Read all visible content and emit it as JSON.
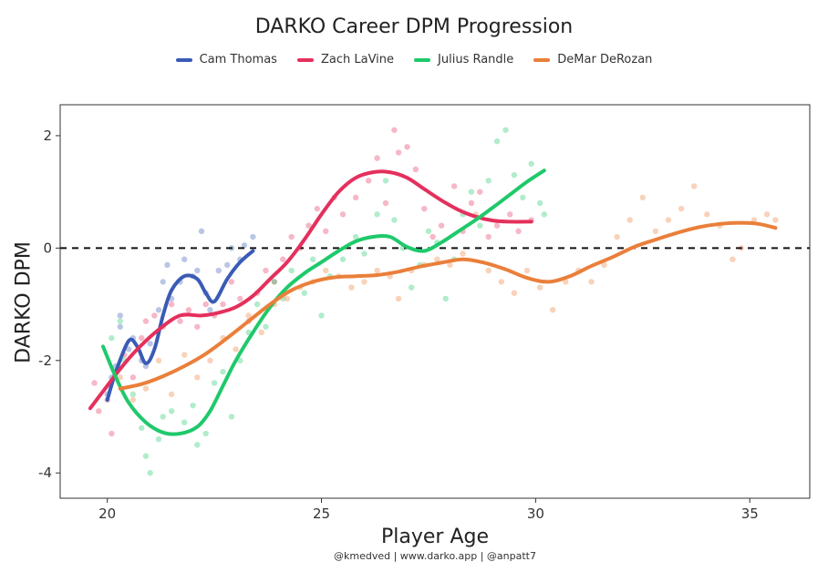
{
  "chart_data": {
    "type": "scatter",
    "title": "DARKO Career DPM Progression",
    "xlabel": "Player Age",
    "ylabel": "DARKO DPM",
    "caption": "@kmedved | www.darko.app | @anpatt7",
    "xlim": [
      18.9,
      36.4
    ],
    "ylim": [
      -4.45,
      2.55
    ],
    "xticks": [
      20,
      25,
      30,
      35
    ],
    "yticks": [
      2,
      0,
      -2,
      -4
    ],
    "xtick_labels": [
      "20",
      "25",
      "30",
      "35"
    ],
    "ytick_labels": [
      "2",
      "0",
      "-2",
      "-4"
    ],
    "reference_line": {
      "y": 0,
      "style": "dashed"
    },
    "grid": false,
    "legend_position": "top",
    "series": [
      {
        "name": "Cam Thomas",
        "color": "#3a5bb5",
        "smooth": [
          [
            20.0,
            -2.7
          ],
          [
            20.2,
            -2.2
          ],
          [
            20.5,
            -1.65
          ],
          [
            20.7,
            -1.75
          ],
          [
            20.9,
            -2.05
          ],
          [
            21.1,
            -1.8
          ],
          [
            21.3,
            -1.2
          ],
          [
            21.5,
            -0.75
          ],
          [
            21.8,
            -0.5
          ],
          [
            22.1,
            -0.55
          ],
          [
            22.3,
            -0.8
          ],
          [
            22.5,
            -0.95
          ],
          [
            22.8,
            -0.55
          ],
          [
            23.1,
            -0.25
          ],
          [
            23.4,
            -0.05
          ]
        ],
        "points": [
          [
            20.0,
            -2.6
          ],
          [
            20.1,
            -2.3
          ],
          [
            20.2,
            -2.1
          ],
          [
            20.3,
            -1.4
          ],
          [
            20.3,
            -1.2
          ],
          [
            20.5,
            -1.8
          ],
          [
            20.6,
            -1.6
          ],
          [
            20.8,
            -2.0
          ],
          [
            20.9,
            -2.1
          ],
          [
            21.0,
            -1.7
          ],
          [
            21.2,
            -1.1
          ],
          [
            21.3,
            -0.6
          ],
          [
            21.4,
            -0.3
          ],
          [
            21.5,
            -0.9
          ],
          [
            21.7,
            -0.6
          ],
          [
            21.8,
            -0.2
          ],
          [
            22.0,
            -0.5
          ],
          [
            22.1,
            -0.4
          ],
          [
            22.2,
            0.3
          ],
          [
            22.3,
            -0.8
          ],
          [
            22.4,
            -1.1
          ],
          [
            22.6,
            -0.4
          ],
          [
            22.8,
            -0.3
          ],
          [
            22.9,
            0.0
          ],
          [
            23.1,
            -0.2
          ],
          [
            23.2,
            0.05
          ],
          [
            23.4,
            0.2
          ]
        ]
      },
      {
        "name": "Zach LaVine",
        "color": "#e4305c",
        "smooth": [
          [
            19.6,
            -2.85
          ],
          [
            19.9,
            -2.55
          ],
          [
            20.3,
            -2.15
          ],
          [
            20.7,
            -1.8
          ],
          [
            21.2,
            -1.45
          ],
          [
            21.7,
            -1.2
          ],
          [
            22.2,
            -1.2
          ],
          [
            22.6,
            -1.15
          ],
          [
            23.0,
            -1.05
          ],
          [
            23.4,
            -0.85
          ],
          [
            23.8,
            -0.55
          ],
          [
            24.2,
            -0.25
          ],
          [
            24.6,
            0.15
          ],
          [
            25.0,
            0.6
          ],
          [
            25.4,
            1.0
          ],
          [
            25.8,
            1.25
          ],
          [
            26.2,
            1.35
          ],
          [
            26.6,
            1.35
          ],
          [
            27.0,
            1.25
          ],
          [
            27.4,
            1.05
          ],
          [
            27.8,
            0.85
          ],
          [
            28.2,
            0.68
          ],
          [
            28.6,
            0.56
          ],
          [
            29.0,
            0.49
          ],
          [
            29.4,
            0.47
          ],
          [
            29.9,
            0.47
          ]
        ],
        "points": [
          [
            19.7,
            -2.4
          ],
          [
            19.8,
            -2.9
          ],
          [
            20.0,
            -2.7
          ],
          [
            20.1,
            -3.3
          ],
          [
            20.2,
            -2.2
          ],
          [
            20.4,
            -1.9
          ],
          [
            20.6,
            -2.3
          ],
          [
            20.8,
            -1.6
          ],
          [
            20.9,
            -1.3
          ],
          [
            21.1,
            -1.2
          ],
          [
            21.3,
            -1.4
          ],
          [
            21.5,
            -1.0
          ],
          [
            21.7,
            -1.3
          ],
          [
            21.9,
            -1.1
          ],
          [
            22.1,
            -1.4
          ],
          [
            22.3,
            -1.0
          ],
          [
            22.5,
            -1.2
          ],
          [
            22.7,
            -1.0
          ],
          [
            22.9,
            -0.6
          ],
          [
            23.1,
            -0.9
          ],
          [
            23.3,
            -1.3
          ],
          [
            23.5,
            -0.8
          ],
          [
            23.7,
            -0.4
          ],
          [
            23.9,
            -0.6
          ],
          [
            24.1,
            -0.2
          ],
          [
            24.3,
            0.2
          ],
          [
            24.5,
            0.0
          ],
          [
            24.7,
            0.4
          ],
          [
            24.9,
            0.7
          ],
          [
            25.1,
            0.3
          ],
          [
            25.3,
            0.9
          ],
          [
            25.5,
            0.6
          ],
          [
            25.8,
            0.9
          ],
          [
            26.1,
            1.2
          ],
          [
            26.3,
            1.6
          ],
          [
            26.5,
            0.8
          ],
          [
            26.7,
            2.1
          ],
          [
            26.8,
            1.7
          ],
          [
            27.0,
            1.8
          ],
          [
            27.2,
            1.4
          ],
          [
            27.4,
            0.7
          ],
          [
            27.6,
            0.2
          ],
          [
            27.8,
            0.4
          ],
          [
            28.1,
            1.1
          ],
          [
            28.3,
            0.3
          ],
          [
            28.5,
            0.8
          ],
          [
            28.7,
            1.0
          ],
          [
            28.9,
            0.2
          ],
          [
            29.1,
            0.4
          ],
          [
            29.4,
            0.6
          ],
          [
            29.6,
            0.3
          ],
          [
            29.9,
            0.5
          ]
        ]
      },
      {
        "name": "Julius Randle",
        "color": "#1fc96b",
        "smooth": [
          [
            19.9,
            -1.75
          ],
          [
            20.2,
            -2.3
          ],
          [
            20.5,
            -2.75
          ],
          [
            20.9,
            -3.1
          ],
          [
            21.3,
            -3.28
          ],
          [
            21.7,
            -3.3
          ],
          [
            22.1,
            -3.18
          ],
          [
            22.4,
            -2.9
          ],
          [
            22.7,
            -2.45
          ],
          [
            23.0,
            -2.0
          ],
          [
            23.4,
            -1.5
          ],
          [
            23.8,
            -1.05
          ],
          [
            24.2,
            -0.7
          ],
          [
            24.6,
            -0.45
          ],
          [
            25.0,
            -0.25
          ],
          [
            25.4,
            -0.05
          ],
          [
            25.8,
            0.12
          ],
          [
            26.2,
            0.2
          ],
          [
            26.6,
            0.2
          ],
          [
            27.0,
            0.02
          ],
          [
            27.4,
            -0.05
          ],
          [
            27.8,
            0.1
          ],
          [
            28.2,
            0.3
          ],
          [
            28.6,
            0.5
          ],
          [
            29.0,
            0.72
          ],
          [
            29.4,
            0.95
          ],
          [
            29.8,
            1.18
          ],
          [
            30.2,
            1.38
          ]
        ],
        "points": [
          [
            20.1,
            -1.6
          ],
          [
            20.3,
            -1.3
          ],
          [
            20.4,
            -2.0
          ],
          [
            20.6,
            -2.6
          ],
          [
            20.8,
            -3.2
          ],
          [
            20.9,
            -3.7
          ],
          [
            21.0,
            -4.0
          ],
          [
            21.2,
            -3.4
          ],
          [
            21.3,
            -3.0
          ],
          [
            21.5,
            -2.9
          ],
          [
            21.8,
            -3.1
          ],
          [
            22.0,
            -2.8
          ],
          [
            22.1,
            -3.5
          ],
          [
            22.3,
            -3.3
          ],
          [
            22.5,
            -2.4
          ],
          [
            22.7,
            -2.2
          ],
          [
            22.9,
            -3.0
          ],
          [
            23.1,
            -2.0
          ],
          [
            23.3,
            -1.5
          ],
          [
            23.5,
            -1.0
          ],
          [
            23.7,
            -1.4
          ],
          [
            23.9,
            -0.6
          ],
          [
            24.1,
            -0.9
          ],
          [
            24.3,
            -0.4
          ],
          [
            24.6,
            -0.8
          ],
          [
            24.8,
            -0.2
          ],
          [
            25.0,
            -1.2
          ],
          [
            25.2,
            -0.5
          ],
          [
            25.5,
            -0.2
          ],
          [
            25.8,
            0.2
          ],
          [
            26.0,
            -0.1
          ],
          [
            26.3,
            0.6
          ],
          [
            26.5,
            1.2
          ],
          [
            26.7,
            0.5
          ],
          [
            26.9,
            0.0
          ],
          [
            27.1,
            -0.7
          ],
          [
            27.3,
            -0.3
          ],
          [
            27.5,
            0.3
          ],
          [
            27.7,
            0.1
          ],
          [
            27.9,
            -0.9
          ],
          [
            28.1,
            -0.2
          ],
          [
            28.3,
            0.6
          ],
          [
            28.5,
            1.0
          ],
          [
            28.7,
            0.4
          ],
          [
            28.9,
            1.2
          ],
          [
            29.1,
            1.9
          ],
          [
            29.3,
            2.1
          ],
          [
            29.5,
            1.3
          ],
          [
            29.7,
            0.9
          ],
          [
            29.9,
            1.5
          ],
          [
            30.1,
            0.8
          ],
          [
            30.2,
            0.6
          ]
        ]
      },
      {
        "name": "DeMar DeRozan",
        "color": "#ea7f3a",
        "smooth": [
          [
            20.3,
            -2.5
          ],
          [
            20.8,
            -2.42
          ],
          [
            21.3,
            -2.28
          ],
          [
            21.8,
            -2.1
          ],
          [
            22.3,
            -1.88
          ],
          [
            22.8,
            -1.6
          ],
          [
            23.3,
            -1.3
          ],
          [
            23.8,
            -1.0
          ],
          [
            24.3,
            -0.75
          ],
          [
            24.8,
            -0.6
          ],
          [
            25.3,
            -0.52
          ],
          [
            25.8,
            -0.5
          ],
          [
            26.3,
            -0.48
          ],
          [
            26.8,
            -0.42
          ],
          [
            27.3,
            -0.33
          ],
          [
            27.8,
            -0.26
          ],
          [
            28.3,
            -0.2
          ],
          [
            28.8,
            -0.26
          ],
          [
            29.3,
            -0.38
          ],
          [
            29.8,
            -0.53
          ],
          [
            30.3,
            -0.6
          ],
          [
            30.8,
            -0.5
          ],
          [
            31.3,
            -0.32
          ],
          [
            31.8,
            -0.16
          ],
          [
            32.3,
            0.02
          ],
          [
            32.8,
            0.15
          ],
          [
            33.3,
            0.27
          ],
          [
            33.8,
            0.37
          ],
          [
            34.3,
            0.43
          ],
          [
            34.8,
            0.45
          ],
          [
            35.2,
            0.43
          ],
          [
            35.6,
            0.36
          ]
        ],
        "points": [
          [
            20.3,
            -2.3
          ],
          [
            20.6,
            -2.7
          ],
          [
            20.9,
            -2.5
          ],
          [
            21.2,
            -2.0
          ],
          [
            21.5,
            -2.6
          ],
          [
            21.8,
            -1.9
          ],
          [
            22.1,
            -2.3
          ],
          [
            22.4,
            -2.0
          ],
          [
            22.7,
            -1.6
          ],
          [
            23.0,
            -1.8
          ],
          [
            23.3,
            -1.2
          ],
          [
            23.6,
            -1.5
          ],
          [
            23.9,
            -1.0
          ],
          [
            24.2,
            -0.9
          ],
          [
            24.5,
            -0.7
          ],
          [
            24.8,
            -0.6
          ],
          [
            25.1,
            -0.4
          ],
          [
            25.4,
            -0.5
          ],
          [
            25.7,
            -0.7
          ],
          [
            26.0,
            -0.6
          ],
          [
            26.3,
            -0.4
          ],
          [
            26.6,
            -0.5
          ],
          [
            26.8,
            -0.9
          ],
          [
            27.1,
            -0.4
          ],
          [
            27.4,
            -0.3
          ],
          [
            27.7,
            -0.2
          ],
          [
            28.0,
            -0.3
          ],
          [
            28.3,
            -0.1
          ],
          [
            28.6,
            0.6
          ],
          [
            28.9,
            -0.4
          ],
          [
            29.2,
            -0.6
          ],
          [
            29.5,
            -0.8
          ],
          [
            29.8,
            -0.4
          ],
          [
            30.1,
            -0.7
          ],
          [
            30.4,
            -1.1
          ],
          [
            30.7,
            -0.6
          ],
          [
            31.0,
            -0.4
          ],
          [
            31.3,
            -0.6
          ],
          [
            31.6,
            -0.3
          ],
          [
            31.9,
            0.2
          ],
          [
            32.2,
            0.5
          ],
          [
            32.5,
            0.9
          ],
          [
            32.8,
            0.3
          ],
          [
            33.1,
            0.5
          ],
          [
            33.4,
            0.7
          ],
          [
            33.7,
            1.1
          ],
          [
            34.0,
            0.6
          ],
          [
            34.3,
            0.4
          ],
          [
            34.6,
            -0.2
          ],
          [
            34.8,
            0.0
          ],
          [
            35.1,
            0.5
          ],
          [
            35.4,
            0.6
          ],
          [
            35.6,
            0.5
          ]
        ]
      }
    ]
  }
}
